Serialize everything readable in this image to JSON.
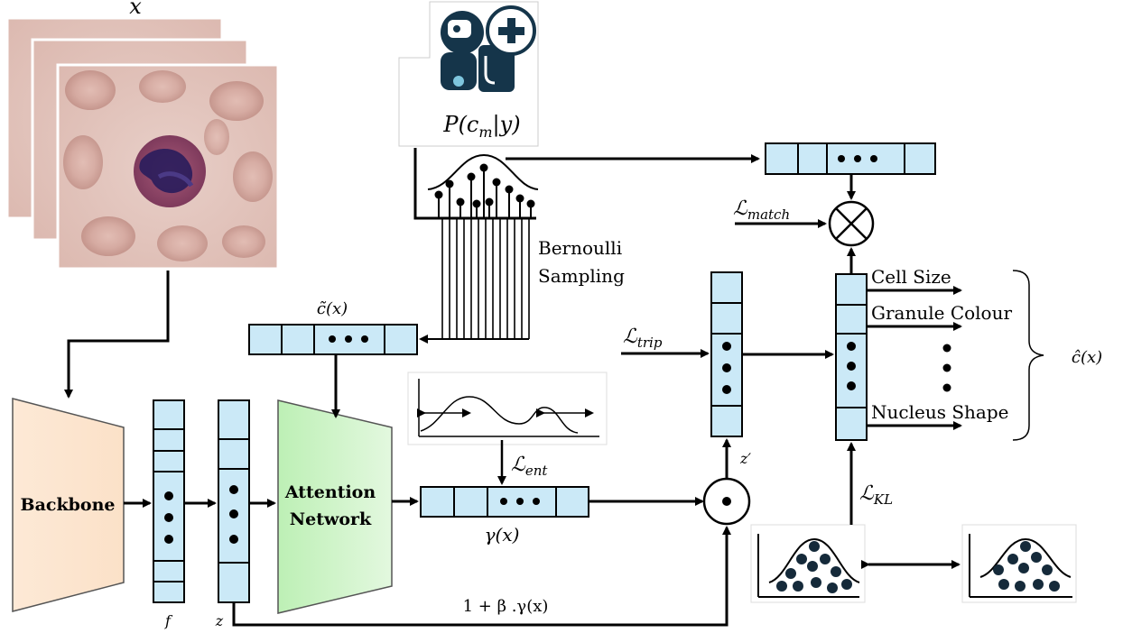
{
  "colors": {
    "vector_fill": "#cbe9f7",
    "backbone_fill": "#fde9d6",
    "attention_fill": "#d4f5cf",
    "line": "#000000"
  },
  "labels": {
    "input_x": "x",
    "prior": "P(c_m|y)",
    "prior_main": "P(c",
    "prior_sub": "m",
    "prior_tail": "|y)",
    "bernoulli_line1": "Bernoulli",
    "bernoulli_line2": "Sampling",
    "c_tilde": "c̃(x)",
    "backbone": "Backbone",
    "attention_line1": "Attention",
    "attention_line2": "Network",
    "f": "f",
    "z": "z",
    "gamma": "γ(x)",
    "scale_formula": "1 + β .γ(x)",
    "z_prime": "z′",
    "c_hat": "ĉ(x)"
  },
  "losses": {
    "match": {
      "main": "ℒ",
      "sub": "match"
    },
    "trip": {
      "main": "ℒ",
      "sub": "trip"
    },
    "ent": {
      "main": "ℒ",
      "sub": "ent"
    },
    "kl": {
      "main": "ℒ",
      "sub": "KL"
    }
  },
  "concepts": [
    "Cell Size",
    "Granule Colour",
    "Nucleus Shape"
  ],
  "icons": [
    "doctor-robot-icon",
    "plus-icon",
    "hadamard-product-icon",
    "outer-product-icon"
  ]
}
